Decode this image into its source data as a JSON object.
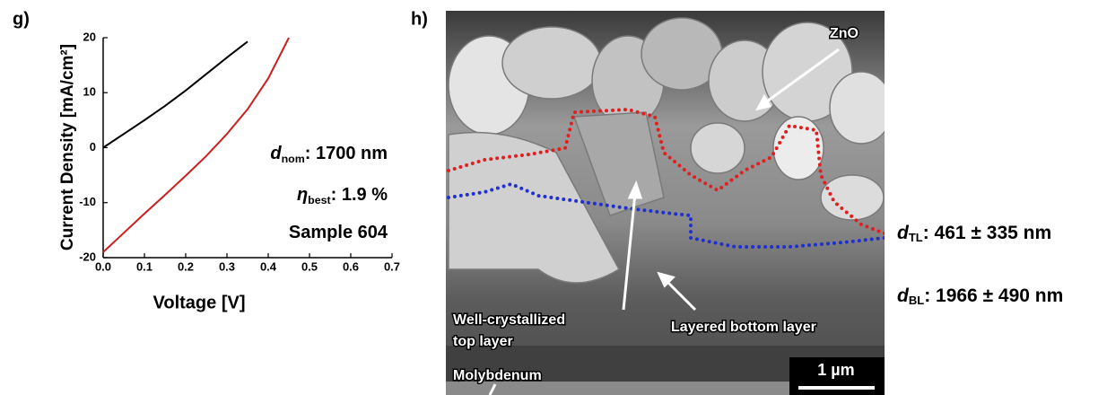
{
  "chart_data": {
    "type": "line",
    "panel_label": "g)",
    "x_label": "Voltage [V]",
    "y_label": "Current Density [mA/cm²]",
    "x": [
      0,
      0.05,
      0.1,
      0.15,
      0.2,
      0.25,
      0.3,
      0.35,
      0.4,
      0.45
    ],
    "series": [
      {
        "color": "#000000",
        "values": [
          0,
          2.5,
          5,
          7.6,
          10.4,
          13.4,
          16.4,
          19.3,
          null,
          null
        ]
      },
      {
        "color": "#cc1f1f",
        "values": [
          -19,
          -15.5,
          -12,
          -8.6,
          -5.1,
          -1.5,
          2.5,
          7,
          12.6,
          20
        ]
      }
    ],
    "xlim": [
      0,
      0.7
    ],
    "ylim": [
      -20,
      20
    ],
    "xticks": [
      {
        "value": 0,
        "label": "0.0"
      },
      0.1,
      0.2,
      0.3,
      0.4,
      0.5,
      0.6,
      0.7
    ],
    "yticks": [
      20,
      10,
      0,
      -10,
      -20
    ],
    "annotations": [
      {
        "symbol": "d",
        "subscript": "nom",
        "text": ": 1700 nm"
      },
      {
        "symbol": "η",
        "subscript": "best",
        "text": ": 1.9  %"
      },
      {
        "text": "Sample 604"
      }
    ]
  },
  "image_panel": {
    "label": "h)",
    "labels": {
      "zno": "ZnO",
      "top_1": "Well-crystallized",
      "top_2": "top layer",
      "bottom": "Layered bottom layer",
      "mo": "Molybdenum",
      "scale": "1 µm"
    },
    "thicknesses": [
      {
        "symbol": "d",
        "subscript": "TL",
        "text": ": 461 ± 335 nm"
      },
      {
        "symbol": "d",
        "subscript": "BL",
        "text": ": 1966 ± 490 nm"
      }
    ]
  }
}
